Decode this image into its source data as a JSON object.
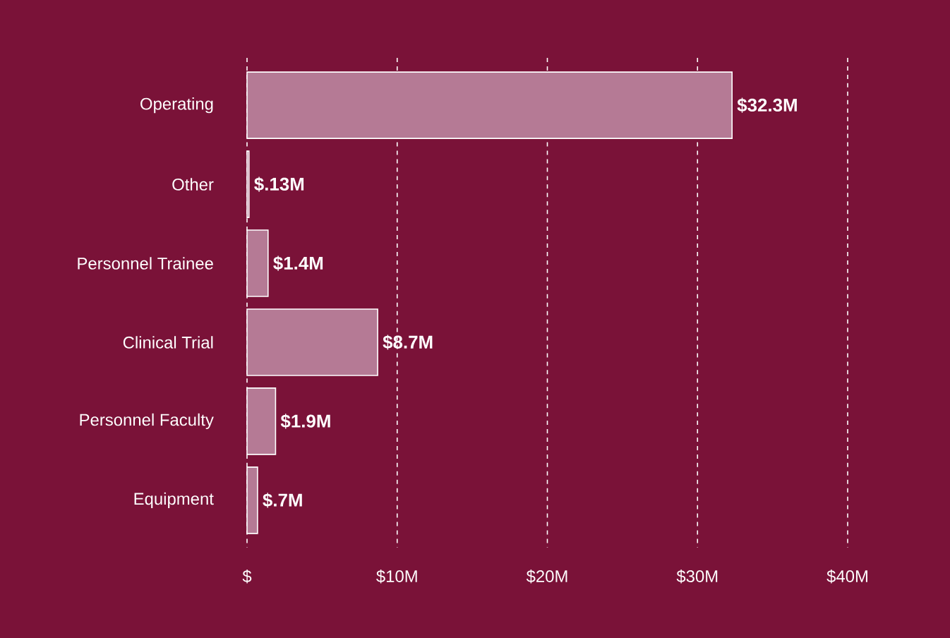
{
  "chart_data": {
    "type": "bar",
    "orientation": "horizontal",
    "categories": [
      "Operating",
      "Other",
      "Personnel Trainee",
      "Clinical Trial",
      "Personnel Faculty",
      "Equipment"
    ],
    "values": [
      32.3,
      0.13,
      1.4,
      8.7,
      1.9,
      0.7
    ],
    "value_labels": [
      "$32.3M",
      "$.13M",
      "$1.4M",
      "$8.7M",
      "$1.9M",
      "$.7M"
    ],
    "color": "#b57a95",
    "xlim": [
      0,
      40
    ],
    "xticks": [
      {
        "value": 0,
        "label": "$"
      },
      {
        "value": 10,
        "label": "$10M"
      },
      {
        "value": 20,
        "label": "$20M"
      },
      {
        "value": 30,
        "label": "$30M"
      },
      {
        "value": 40,
        "label": "$40M"
      }
    ],
    "grid": "x"
  }
}
